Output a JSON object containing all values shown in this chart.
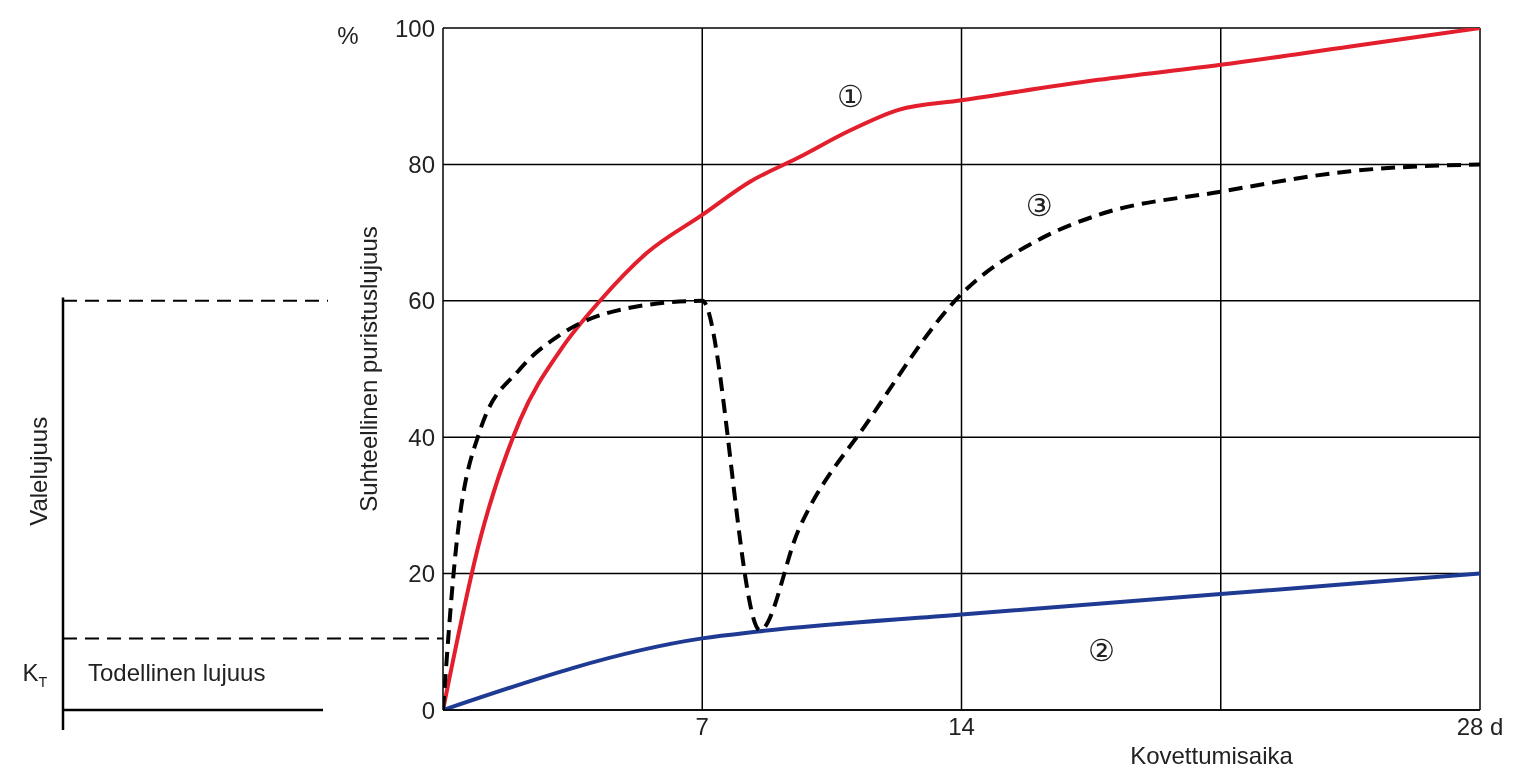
{
  "chart_data": {
    "type": "line",
    "ylabel": "Suhteellinen puristuslujuus",
    "xlabel": "Kovettumisaika",
    "xlim": [
      0,
      28
    ],
    "xticks": [
      {
        "value": 7,
        "label": "7"
      },
      {
        "value": 14,
        "label": "14"
      },
      {
        "value": 21,
        "label": null
      },
      {
        "value": 28,
        "label": "28 d"
      }
    ],
    "ylim": [
      0,
      100
    ],
    "yticks": [
      0,
      20,
      40,
      60,
      80,
      100
    ],
    "grid": true,
    "marker": "none",
    "series": [
      {
        "name": "①",
        "color": "#e31e2d",
        "line_style": "solid",
        "x": [
          0,
          1,
          2.08,
          3.2,
          4.24,
          5.5,
          7,
          8.3,
          9.6,
          11,
          12.3,
          14,
          17.7,
          21,
          24.5,
          28
        ],
        "values": [
          0,
          25,
          42.5,
          53,
          60,
          67,
          72.6,
          77.5,
          81,
          85,
          88,
          89.4,
          92.4,
          94.6,
          97.3,
          100
        ]
      },
      {
        "name": "②",
        "color": "#1f3a93",
        "line_style": "solid",
        "x": [
          0,
          7,
          8.5,
          14,
          21,
          28
        ],
        "values": [
          0,
          10.5,
          11.5,
          14,
          17,
          20
        ]
      },
      {
        "name": "③",
        "color": "#000000",
        "line_style": "dashed",
        "x": [
          0,
          0.32,
          1,
          2.08,
          3.16,
          4.8,
          7,
          8.56,
          9.6,
          11.5,
          14,
          16.1,
          17.7,
          21,
          24.5,
          28
        ],
        "values": [
          0,
          22,
          41,
          50,
          55,
          58.7,
          60,
          11.7,
          26.4,
          42.5,
          61,
          69,
          72.6,
          76,
          79,
          80
        ]
      }
    ],
    "annotations": [
      "%",
      "K$_{T}$",
      "Valelujuus",
      "Todellinen lujuus"
    ]
  }
}
